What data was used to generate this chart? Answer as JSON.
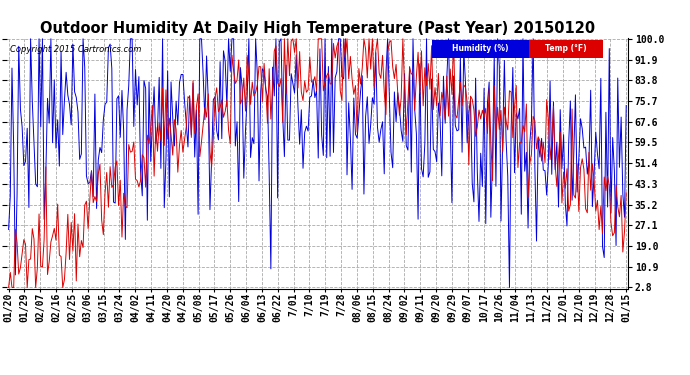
{
  "title": "Outdoor Humidity At Daily High Temperature (Past Year) 20150120",
  "copyright": "Copyright 2015 Cartronics.com",
  "legend": [
    {
      "label": "Humidity (%)",
      "color": "#0000dd"
    },
    {
      "label": "Temp (°F)",
      "color": "#dd0000"
    }
  ],
  "yticks": [
    100.0,
    91.9,
    83.8,
    75.7,
    67.6,
    59.5,
    51.4,
    43.3,
    35.2,
    27.1,
    19.0,
    10.9,
    2.8
  ],
  "ymin": 2.8,
  "ymax": 100.0,
  "background_color": "#ffffff",
  "plot_bg_color": "#ffffff",
  "grid_color": "#aaaaaa",
  "title_fontsize": 10.5,
  "tick_fontsize": 7,
  "humidity_color": "#0000dd",
  "temp_color": "#dd0000",
  "xtick_labels": [
    "01/20",
    "01/29",
    "02/07",
    "02/16",
    "02/25",
    "03/06",
    "03/15",
    "03/24",
    "04/02",
    "04/11",
    "04/20",
    "04/29",
    "05/08",
    "05/17",
    "05/26",
    "06/04",
    "06/13",
    "06/22",
    "7/01",
    "7/10",
    "7/19",
    "7/28",
    "08/06",
    "08/15",
    "08/24",
    "09/02",
    "09/11",
    "09/20",
    "09/29",
    "09/07",
    "10/17",
    "10/26",
    "11/04",
    "11/13",
    "11/22",
    "12/01",
    "12/10",
    "12/19",
    "12/28",
    "01/15"
  ],
  "n_points": 366
}
